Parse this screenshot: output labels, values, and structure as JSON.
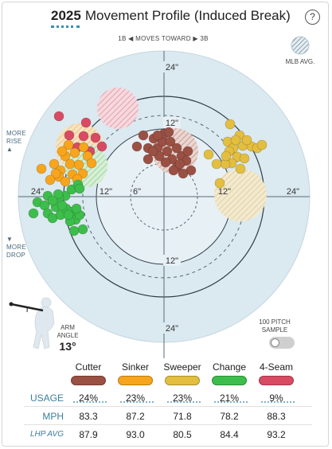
{
  "header": {
    "year": "2025",
    "title": "Movement Profile (Induced Break)",
    "help_label": "?"
  },
  "plot": {
    "moves_toward": "1B ◀  MOVES TOWARD  ▶ 3B",
    "more_rise": "MORE RISE",
    "more_drop": "MORE DROP",
    "ring_labels": {
      "top_24": "24\"",
      "top_12": "12\"",
      "left_24": "24\"",
      "left_12": "12\"",
      "left_6": "6\"",
      "right_12": "12\"",
      "right_24": "24\"",
      "bottom_12": "12\"",
      "bottom_24": "24\""
    },
    "mlb_avg_label": "MLB AVG.",
    "arm_angle_label": "ARM ANGLE",
    "arm_angle_value": "13°",
    "sample_label": "100 PITCH SAMPLE",
    "sample_toggle_on": false
  },
  "pitch_colors": {
    "cutter": "#9b5044",
    "sinker": "#f7a51d",
    "sweeper": "#e3be3f",
    "change": "#3dbd4b",
    "fourseam": "#d94a63"
  },
  "table": {
    "pitches": [
      "Cutter",
      "Sinker",
      "Sweeper",
      "Change",
      "4-Seam"
    ],
    "pill_colors": [
      "#9b5044",
      "#f7a51d",
      "#e3be3f",
      "#3dbd4b",
      "#d94a63"
    ],
    "rows": [
      {
        "label": "USAGE",
        "values": [
          "24%",
          "23%",
          "23%",
          "21%",
          "9%"
        ]
      },
      {
        "label": "MPH",
        "values": [
          "83.3",
          "87.2",
          "71.8",
          "78.2",
          "88.3"
        ]
      },
      {
        "label": "LHP AVG",
        "values": [
          "87.9",
          "93.0",
          "80.5",
          "84.4",
          "93.2"
        ]
      }
    ]
  }
}
